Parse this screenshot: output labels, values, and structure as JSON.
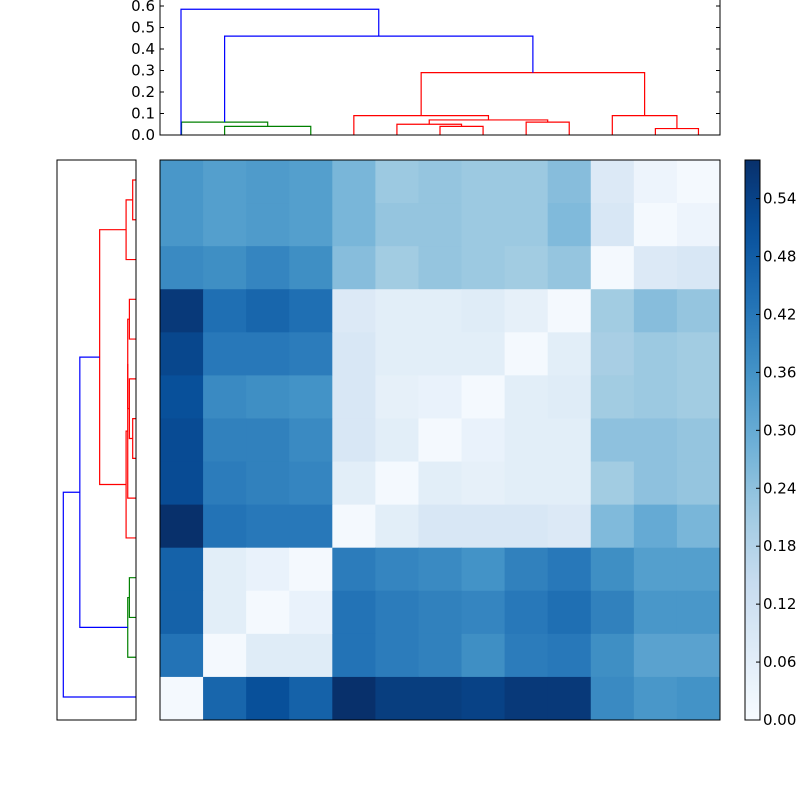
{
  "chart_data": [
    {
      "type": "dendrogram",
      "orientation": "top",
      "ylim": [
        0,
        0.6
      ],
      "yticks": [
        "0.0",
        "0.1",
        "0.2",
        "0.3",
        "0.4",
        "0.5",
        "0.6"
      ],
      "colors": {
        "root": "#0000ff",
        "cluster_a": "#008000",
        "cluster_b": "#ff0000"
      },
      "leaves": [
        "0",
        "1",
        "2",
        "3",
        "4",
        "5",
        "6",
        "7",
        "8",
        "9",
        "10",
        "11",
        "12"
      ],
      "merges": [
        {
          "left": 1,
          "right": 3,
          "height": 0.04,
          "color": "cluster_a"
        },
        {
          "left": 0,
          "right": "m0",
          "height": 0.06,
          "color": "cluster_a"
        },
        {
          "left": 6,
          "right": 7,
          "height": 0.04,
          "color": "cluster_b"
        },
        {
          "left": 5,
          "right": "m2",
          "height": 0.05,
          "color": "cluster_b"
        },
        {
          "left": 8,
          "right": 9,
          "height": 0.06,
          "color": "cluster_b"
        },
        {
          "left": "m3",
          "right": "m4",
          "height": 0.07,
          "color": "cluster_b"
        },
        {
          "left": 4,
          "right": "m5",
          "height": 0.09,
          "color": "cluster_b"
        },
        {
          "left": 11,
          "right": 12,
          "height": 0.03,
          "color": "cluster_b"
        },
        {
          "left": 10,
          "right": "m7",
          "height": 0.09,
          "color": "cluster_b"
        },
        {
          "left": "m6",
          "right": "m8",
          "height": 0.29,
          "color": "cluster_b"
        },
        {
          "left": "m1",
          "right": "m9",
          "height": 0.46,
          "color": "root"
        },
        {
          "left": "leafA",
          "right": "m10",
          "height": 0.585,
          "color": "root"
        }
      ],
      "extra_leaf": "leafA"
    },
    {
      "type": "dendrogram",
      "orientation": "left",
      "note_rows": "rows listed top to bottom",
      "merges": [
        {
          "left": 0,
          "right": 1,
          "height": 0.01,
          "color": "cluster_b"
        },
        {
          "left": 2,
          "right": "r0",
          "height": 0.03,
          "color": "cluster_b"
        },
        {
          "left": 3,
          "right": 4,
          "height": 0.02,
          "color": "cluster_b"
        },
        {
          "left": 6,
          "right": 7,
          "height": 0.01,
          "color": "cluster_b"
        },
        {
          "left": 5,
          "right": "r3",
          "height": 0.02,
          "color": "cluster_b"
        },
        {
          "left": "r2",
          "right": "r4",
          "height": 0.025,
          "color": "cluster_b"
        },
        {
          "left": "r5",
          "right": 8,
          "height": 0.025,
          "color": "cluster_b"
        },
        {
          "left": "r6",
          "right": 9,
          "height": 0.03,
          "color": "cluster_b"
        },
        {
          "left": "r1",
          "right": "r7",
          "height": 0.11,
          "color": "cluster_b"
        },
        {
          "left": 10,
          "right": 11,
          "height": 0.02,
          "color": "cluster_a"
        },
        {
          "left": "r9",
          "right": 12,
          "height": 0.025,
          "color": "cluster_a"
        },
        {
          "left": "r8",
          "right": "r10",
          "height": 0.17,
          "color": "root"
        },
        {
          "left": "r11",
          "right": 13,
          "height": 0.22,
          "color": "root"
        }
      ]
    },
    {
      "type": "heatmap",
      "rows": 13,
      "cols": 13,
      "vmin": 0,
      "vmax": 0.58,
      "colormap": "Blues",
      "values": [
        [
          0.35,
          0.33,
          0.34,
          0.33,
          0.27,
          0.22,
          0.23,
          0.22,
          0.22,
          0.25,
          0.08,
          0.03,
          0.01
        ],
        [
          0.35,
          0.33,
          0.34,
          0.33,
          0.27,
          0.23,
          0.23,
          0.22,
          0.22,
          0.26,
          0.09,
          0.01,
          0.03
        ],
        [
          0.38,
          0.37,
          0.39,
          0.37,
          0.25,
          0.21,
          0.23,
          0.22,
          0.21,
          0.23,
          0.01,
          0.08,
          0.09
        ],
        [
          0.56,
          0.44,
          0.46,
          0.44,
          0.08,
          0.06,
          0.06,
          0.07,
          0.05,
          0.01,
          0.21,
          0.25,
          0.23
        ],
        [
          0.53,
          0.42,
          0.42,
          0.41,
          0.09,
          0.06,
          0.06,
          0.06,
          0.01,
          0.06,
          0.2,
          0.22,
          0.21
        ],
        [
          0.51,
          0.38,
          0.37,
          0.36,
          0.09,
          0.05,
          0.04,
          0.01,
          0.06,
          0.07,
          0.21,
          0.22,
          0.21
        ],
        [
          0.52,
          0.4,
          0.4,
          0.38,
          0.09,
          0.06,
          0.01,
          0.04,
          0.06,
          0.06,
          0.24,
          0.24,
          0.23
        ],
        [
          0.52,
          0.41,
          0.4,
          0.39,
          0.06,
          0.01,
          0.06,
          0.05,
          0.06,
          0.06,
          0.21,
          0.24,
          0.23
        ],
        [
          0.58,
          0.43,
          0.42,
          0.42,
          0.01,
          0.06,
          0.09,
          0.09,
          0.09,
          0.08,
          0.26,
          0.3,
          0.27
        ],
        [
          0.47,
          0.06,
          0.04,
          0.01,
          0.41,
          0.39,
          0.38,
          0.36,
          0.4,
          0.42,
          0.37,
          0.33,
          0.33
        ],
        [
          0.47,
          0.06,
          0.01,
          0.04,
          0.43,
          0.41,
          0.4,
          0.39,
          0.42,
          0.44,
          0.4,
          0.35,
          0.35
        ],
        [
          0.43,
          0.01,
          0.07,
          0.07,
          0.43,
          0.41,
          0.4,
          0.37,
          0.41,
          0.42,
          0.37,
          0.32,
          0.32
        ],
        [
          0.01,
          0.46,
          0.51,
          0.47,
          0.58,
          0.55,
          0.55,
          0.54,
          0.56,
          0.56,
          0.38,
          0.35,
          0.36
        ]
      ]
    },
    {
      "type": "colorbar",
      "ticks": [
        "0.00",
        "0.06",
        "0.12",
        "0.18",
        "0.24",
        "0.30",
        "0.36",
        "0.42",
        "0.48",
        "0.54"
      ],
      "tick_values": [
        0,
        0.06,
        0.12,
        0.18,
        0.24,
        0.3,
        0.36,
        0.42,
        0.48,
        0.54
      ],
      "vmin": 0,
      "vmax": 0.58
    }
  ]
}
